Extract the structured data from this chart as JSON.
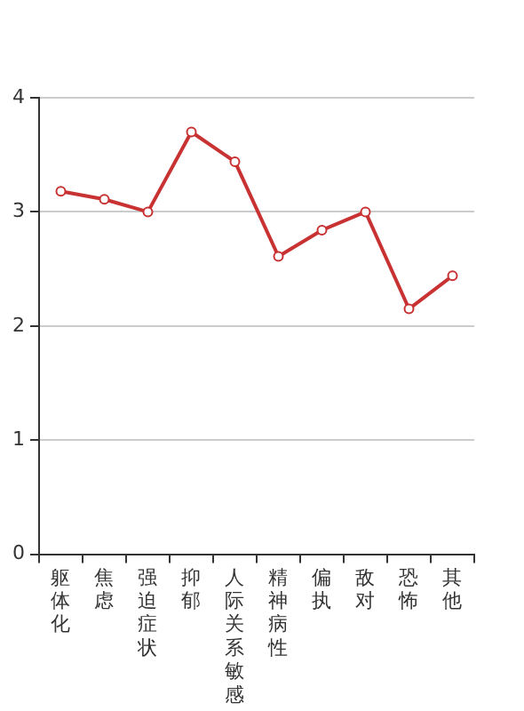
{
  "chart_data": {
    "type": "line",
    "categories": [
      "躯体化",
      "焦虑",
      "强迫症状",
      "抑郁",
      "人际关系敏感",
      "精神病性",
      "偏执",
      "敌对",
      "恐怖",
      "其他"
    ],
    "series": [
      {
        "color": "#c83232",
        "values": [
          3.18,
          3.11,
          3.0,
          3.7,
          3.44,
          2.61,
          2.84,
          3.0,
          2.15,
          2.44
        ]
      }
    ],
    "ylim": [
      0,
      4
    ],
    "yticks": [
      0,
      1,
      2,
      3,
      4
    ],
    "grid": "y",
    "legend": false,
    "marker": "circle",
    "line_style": "solid"
  }
}
